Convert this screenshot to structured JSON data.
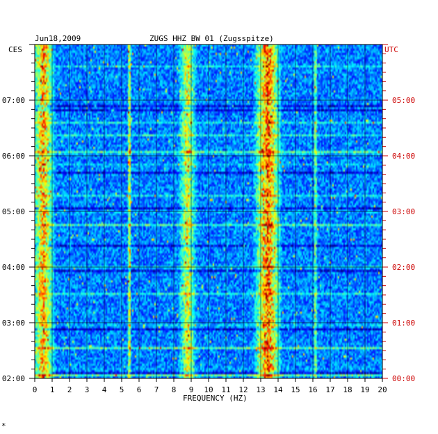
{
  "header": {
    "date": "Jun18,2009",
    "station": "ZUGS HHZ BW 01 (Zugsspitze)"
  },
  "left_axis": {
    "label": "CES",
    "color": "#000000"
  },
  "right_axis": {
    "label": "UTC",
    "color": "#cc0000"
  },
  "footer_mark": "*",
  "colors": {
    "background": "#000080",
    "axis": "#000000",
    "utc": "#cc0000"
  },
  "chart_data": {
    "type": "heatmap",
    "title": "ZUGS HHZ BW 01 (Zugsspitze)",
    "date": "Jun18,2009",
    "xlabel": "FREQUENCY (HZ)",
    "xlim": [
      0,
      20
    ],
    "x_ticks": [
      "0",
      "1",
      "2",
      "3",
      "4",
      "5",
      "6",
      "7",
      "8",
      "9",
      "10",
      "11",
      "12",
      "13",
      "14",
      "15",
      "16",
      "17",
      "18",
      "19",
      "20"
    ],
    "left_time_zone": "CES",
    "right_time_zone": "UTC",
    "time_range_hours_ces": [
      2.0,
      8.0
    ],
    "left_ticks": [
      "02:00",
      "03:00",
      "04:00",
      "05:00",
      "06:00",
      "07:00"
    ],
    "right_ticks": [
      "00:00",
      "01:00",
      "02:00",
      "03:00",
      "04:00",
      "05:00"
    ],
    "colormap": "jet",
    "features": [
      {
        "name": "broad energy band",
        "freq_hz": [
          12.8,
          14.0
        ],
        "relative_level": 0.65
      },
      {
        "name": "secondary band",
        "freq_hz": [
          8.4,
          9.2
        ],
        "relative_level": 0.42
      },
      {
        "name": "low-frequency noise",
        "freq_hz": [
          0.0,
          1.0
        ],
        "relative_level": 0.55
      },
      {
        "name": "narrow line",
        "freq_hz": [
          5.4,
          5.5
        ],
        "relative_level": 0.5
      },
      {
        "name": "narrow line",
        "freq_hz": [
          16.1,
          16.2
        ],
        "relative_level": 0.35
      }
    ]
  }
}
